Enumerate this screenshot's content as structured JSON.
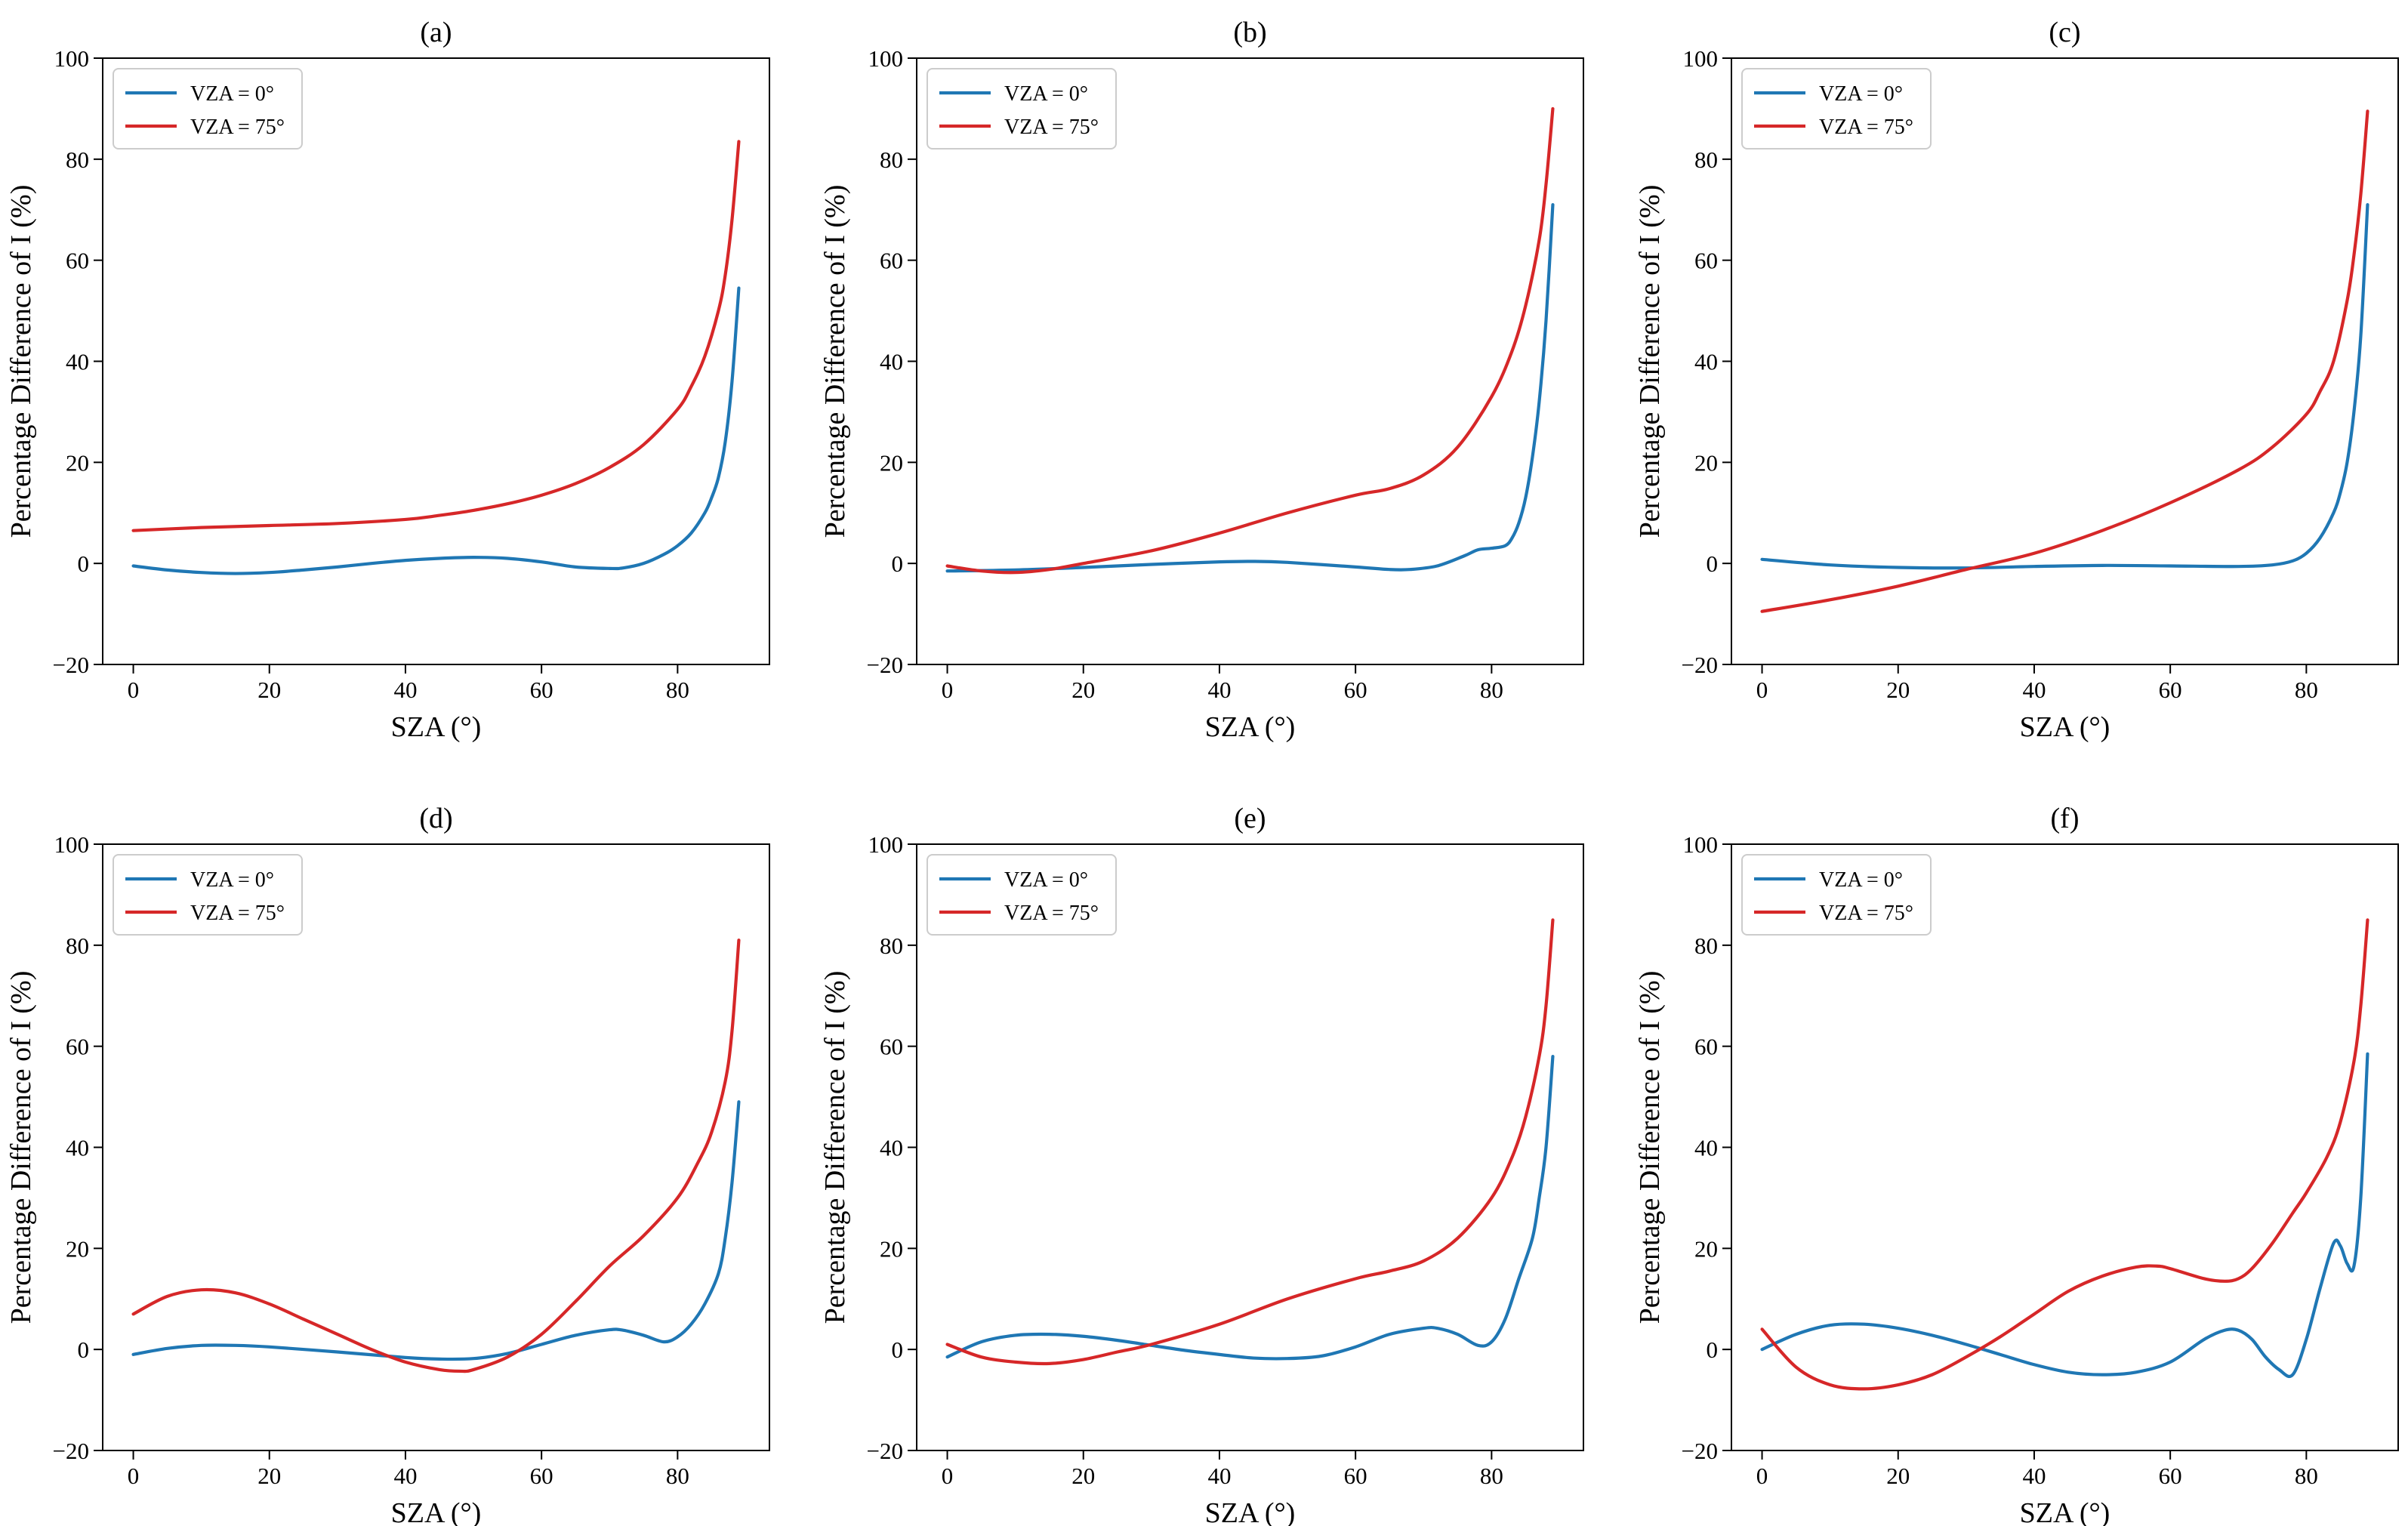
{
  "colors": {
    "vza0": "#1f77b4",
    "vza75": "#d62728",
    "axis": "#000000",
    "legend_border": "#cccccc"
  },
  "chart_data": [
    {
      "type": "line",
      "title": "(a)",
      "xlabel": "SZA (°)",
      "ylabel": "Percentage Difference of I (%)",
      "xlim": [
        -4.5,
        93.5
      ],
      "ylim": [
        -20,
        100
      ],
      "xticks": [
        0,
        20,
        40,
        60,
        80
      ],
      "yticks": [
        -20,
        0,
        20,
        40,
        60,
        80,
        100
      ],
      "grid": false,
      "legend": "top-left",
      "series": [
        {
          "name": "VZA = 0°",
          "x": [
            0,
            5,
            10,
            15,
            20,
            25,
            30,
            35,
            40,
            45,
            50,
            55,
            60,
            65,
            70,
            72,
            75,
            78,
            80,
            82,
            84,
            85,
            86,
            87,
            88,
            89
          ],
          "y": [
            -0.5,
            -1.3,
            -1.8,
            -2.0,
            -1.8,
            -1.3,
            -0.7,
            0,
            0.6,
            1.0,
            1.2,
            1.0,
            0.3,
            -0.7,
            -1.0,
            -0.9,
            0,
            1.8,
            3.5,
            6.0,
            10.0,
            13.0,
            17.0,
            24.0,
            36.0,
            54.5
          ]
        },
        {
          "name": "VZA = 75°",
          "x": [
            0,
            10,
            20,
            30,
            40,
            45,
            50,
            55,
            60,
            65,
            70,
            75,
            80,
            82,
            84,
            86,
            87,
            88,
            89
          ],
          "y": [
            6.5,
            7.1,
            7.5,
            7.9,
            8.7,
            9.5,
            10.5,
            11.8,
            13.5,
            15.8,
            19.0,
            23.5,
            30.5,
            35.0,
            41.0,
            50.0,
            57.0,
            68.0,
            83.5
          ]
        }
      ]
    },
    {
      "type": "line",
      "title": "(b)",
      "xlabel": "SZA (°)",
      "ylabel": "Percentage Difference of I (%)",
      "xlim": [
        -4.5,
        93.5
      ],
      "ylim": [
        -20,
        100
      ],
      "xticks": [
        0,
        20,
        40,
        60,
        80
      ],
      "yticks": [
        -20,
        0,
        20,
        40,
        60,
        80,
        100
      ],
      "grid": false,
      "legend": "top-left",
      "series": [
        {
          "name": "VZA = 0°",
          "x": [
            0,
            10,
            20,
            30,
            40,
            45,
            50,
            60,
            65,
            68,
            72,
            76,
            78,
            80,
            82,
            83,
            84,
            85,
            86,
            87,
            88,
            89
          ],
          "y": [
            -1.5,
            -1.3,
            -0.8,
            -0.2,
            0.3,
            0.4,
            0.2,
            -0.7,
            -1.2,
            -1.2,
            -0.5,
            1.5,
            2.7,
            3.0,
            3.5,
            5.0,
            8.0,
            13.0,
            21.0,
            32.0,
            48.0,
            71.0
          ]
        },
        {
          "name": "VZA = 75°",
          "x": [
            0,
            5,
            10,
            15,
            20,
            30,
            40,
            50,
            60,
            65,
            70,
            75,
            80,
            83,
            85,
            87,
            88,
            89
          ],
          "y": [
            -0.5,
            -1.5,
            -1.8,
            -1.2,
            0,
            2.5,
            6.0,
            10.0,
            13.5,
            14.8,
            17.5,
            23.0,
            33.0,
            42.0,
            51.0,
            64.0,
            75.0,
            90.0
          ]
        }
      ]
    },
    {
      "type": "line",
      "title": "(c)",
      "xlabel": "SZA (°)",
      "ylabel": "Percentage Difference of I (%)",
      "xlim": [
        -4.5,
        93.5
      ],
      "ylim": [
        -20,
        100
      ],
      "xticks": [
        0,
        20,
        40,
        60,
        80
      ],
      "yticks": [
        -20,
        0,
        20,
        40,
        60,
        80,
        100
      ],
      "grid": false,
      "legend": "top-left",
      "series": [
        {
          "name": "VZA = 0°",
          "x": [
            0,
            10,
            20,
            30,
            40,
            50,
            60,
            70,
            75,
            78,
            80,
            82,
            84,
            85,
            86,
            87,
            88,
            89
          ],
          "y": [
            0.8,
            -0.3,
            -0.8,
            -0.9,
            -0.6,
            -0.4,
            -0.5,
            -0.6,
            -0.3,
            0.5,
            2.0,
            5.0,
            10.0,
            14.0,
            20.0,
            30.0,
            45.0,
            71.0
          ]
        },
        {
          "name": "VZA = 75°",
          "x": [
            0,
            10,
            20,
            30,
            40,
            50,
            60,
            70,
            75,
            80,
            82,
            84,
            86,
            87,
            88,
            89
          ],
          "y": [
            -9.5,
            -7.2,
            -4.5,
            -1.2,
            2.0,
            6.5,
            12.0,
            18.5,
            23.0,
            29.5,
            34.0,
            40.0,
            52.0,
            61.0,
            73.0,
            89.5
          ]
        }
      ]
    },
    {
      "type": "line",
      "title": "(d)",
      "xlabel": "SZA (°)",
      "ylabel": "Percentage Difference of I (%)",
      "xlim": [
        -4.5,
        93.5
      ],
      "ylim": [
        -20,
        100
      ],
      "xticks": [
        0,
        20,
        40,
        60,
        80
      ],
      "yticks": [
        -20,
        0,
        20,
        40,
        60,
        80,
        100
      ],
      "grid": false,
      "legend": "top-left",
      "series": [
        {
          "name": "VZA = 0°",
          "x": [
            0,
            5,
            10,
            15,
            20,
            30,
            40,
            45,
            50,
            55,
            60,
            65,
            70,
            72,
            75,
            78,
            80,
            82,
            84,
            86,
            87,
            88,
            89
          ],
          "y": [
            -1.0,
            0.2,
            0.8,
            0.8,
            0.5,
            -0.5,
            -1.6,
            -1.9,
            -1.8,
            -0.8,
            1.0,
            2.8,
            3.9,
            3.8,
            2.8,
            1.5,
            2.5,
            5.0,
            9.0,
            15.0,
            22.0,
            33.0,
            49.0
          ]
        },
        {
          "name": "VZA = 75°",
          "x": [
            0,
            5,
            10,
            15,
            20,
            25,
            30,
            35,
            40,
            45,
            48,
            50,
            55,
            60,
            65,
            70,
            75,
            80,
            83,
            85,
            87,
            88,
            89
          ],
          "y": [
            7.0,
            10.5,
            11.8,
            11.2,
            9.0,
            6.0,
            3.0,
            0,
            -2.5,
            -4.0,
            -4.3,
            -4.0,
            -1.5,
            3.0,
            9.5,
            16.5,
            22.5,
            30.0,
            37.0,
            43.0,
            53.0,
            63.0,
            81.0
          ]
        }
      ]
    },
    {
      "type": "line",
      "title": "(e)",
      "xlabel": "SZA (°)",
      "ylabel": "Percentage Difference of I (%)",
      "xlim": [
        -4.5,
        93.5
      ],
      "ylim": [
        -20,
        100
      ],
      "xticks": [
        0,
        20,
        40,
        60,
        80
      ],
      "yticks": [
        -20,
        0,
        20,
        40,
        60,
        80,
        100
      ],
      "grid": false,
      "legend": "top-left",
      "series": [
        {
          "name": "VZA = 0°",
          "x": [
            0,
            5,
            10,
            15,
            20,
            25,
            30,
            35,
            40,
            45,
            50,
            55,
            60,
            65,
            70,
            72,
            75,
            78,
            80,
            82,
            84,
            86,
            87,
            88,
            89
          ],
          "y": [
            -1.5,
            1.5,
            2.8,
            3.0,
            2.6,
            1.8,
            0.8,
            -0.2,
            -1.0,
            -1.7,
            -1.8,
            -1.3,
            0.5,
            3.0,
            4.2,
            4.2,
            3.0,
            0.8,
            1.5,
            6.0,
            14.0,
            22.0,
            30.0,
            40.0,
            58.0
          ]
        },
        {
          "name": "VZA = 75°",
          "x": [
            0,
            5,
            10,
            15,
            20,
            25,
            30,
            40,
            50,
            60,
            65,
            70,
            75,
            80,
            83,
            85,
            87,
            88,
            89
          ],
          "y": [
            1.0,
            -1.5,
            -2.5,
            -2.8,
            -2.0,
            -0.5,
            1.0,
            5.0,
            10.0,
            14.0,
            15.5,
            17.5,
            22.0,
            30.0,
            38.0,
            46.0,
            58.0,
            68.0,
            85.0
          ]
        }
      ]
    },
    {
      "type": "line",
      "title": "(f)",
      "xlabel": "SZA (°)",
      "ylabel": "Percentage Difference of I (%)",
      "xlim": [
        -4.5,
        93.5
      ],
      "ylim": [
        -20,
        100
      ],
      "xticks": [
        0,
        20,
        40,
        60,
        80
      ],
      "yticks": [
        -20,
        0,
        20,
        40,
        60,
        80,
        100
      ],
      "grid": false,
      "legend": "top-left",
      "series": [
        {
          "name": "VZA = 0°",
          "x": [
            0,
            5,
            10,
            15,
            20,
            25,
            30,
            35,
            40,
            45,
            50,
            55,
            60,
            65,
            68,
            70,
            72,
            74,
            76,
            78,
            80,
            82,
            84,
            85,
            86,
            87,
            88,
            89
          ],
          "y": [
            0,
            3.0,
            4.8,
            5.0,
            4.2,
            2.8,
            1.0,
            -1.0,
            -3.0,
            -4.5,
            -5.0,
            -4.5,
            -2.5,
            2.0,
            3.8,
            3.8,
            2.0,
            -1.5,
            -4.0,
            -5.0,
            2.0,
            12.0,
            21.0,
            20.5,
            17.0,
            16.5,
            30.0,
            58.5
          ]
        },
        {
          "name": "VZA = 75°",
          "x": [
            0,
            5,
            10,
            15,
            20,
            25,
            30,
            35,
            40,
            45,
            50,
            55,
            58,
            60,
            65,
            68,
            70,
            72,
            75,
            78,
            80,
            83,
            85,
            87,
            88,
            89
          ],
          "y": [
            4.0,
            -3.5,
            -7.0,
            -7.8,
            -7.0,
            -5.0,
            -1.5,
            2.5,
            7.0,
            11.5,
            14.5,
            16.3,
            16.5,
            16.0,
            14.0,
            13.5,
            14.0,
            16.0,
            21.0,
            27.0,
            31.0,
            38.0,
            45.0,
            57.0,
            68.0,
            85.0
          ]
        }
      ]
    }
  ]
}
